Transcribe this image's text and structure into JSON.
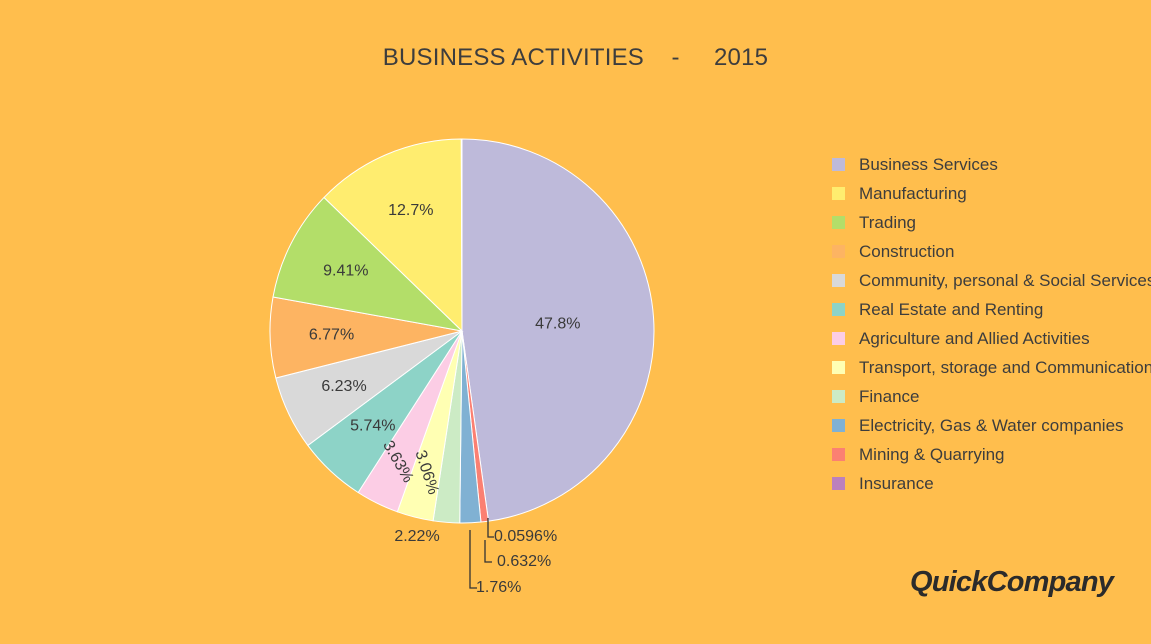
{
  "chart_data": {
    "type": "pie",
    "title": "BUSINESS ACTIVITIES    -     2015",
    "legend_position": "right",
    "slices": [
      {
        "label": "Business Services",
        "value": 47.8,
        "value_label": "47.8%",
        "color": "#BEBADA"
      },
      {
        "label": "Mining & Quarrying",
        "value": 0.632,
        "value_label": "0.632%",
        "color": "#FB8072"
      },
      {
        "label": "Electricity, Gas & Water companies",
        "value": 1.76,
        "value_label": "1.76%",
        "color": "#80B1D3"
      },
      {
        "label": "Finance",
        "value": 2.22,
        "value_label": "2.22%",
        "color": "#CCEBC5"
      },
      {
        "label": "Transport, storage and Communications",
        "value": 3.06,
        "value_label": "3.06%",
        "color": "#FFFFB3"
      },
      {
        "label": "Agriculture and Allied Activities",
        "value": 3.63,
        "value_label": "3.63%",
        "color": "#FCCDE5"
      },
      {
        "label": "Real Estate and Renting",
        "value": 5.74,
        "value_label": "5.74%",
        "color": "#8DD3C7"
      },
      {
        "label": "Community, personal & Social Services",
        "value": 6.23,
        "value_label": "6.23%",
        "color": "#D9D9D9"
      },
      {
        "label": "Construction",
        "value": 6.77,
        "value_label": "6.77%",
        "color": "#FDB462"
      },
      {
        "label": "Trading",
        "value": 9.41,
        "value_label": "9.41%",
        "color": "#B3DE69"
      },
      {
        "label": "Manufacturing",
        "value": 12.7,
        "value_label": "12.7%",
        "color": "#FFED6F"
      },
      {
        "label": "Insurance",
        "value": 0.0596,
        "value_label": "0.0596%",
        "color": "#BC80BD"
      }
    ],
    "legend_order": [
      "Business Services",
      "Manufacturing",
      "Trading",
      "Construction",
      "Community, personal & Social Services",
      "Real Estate and Renting",
      "Agriculture and Allied Activities",
      "Transport, storage and Communications",
      "Finance",
      "Electricity, Gas & Water companies",
      "Mining & Quarrying",
      "Insurance"
    ]
  },
  "branding": {
    "logo_text": "QuickCompany"
  }
}
